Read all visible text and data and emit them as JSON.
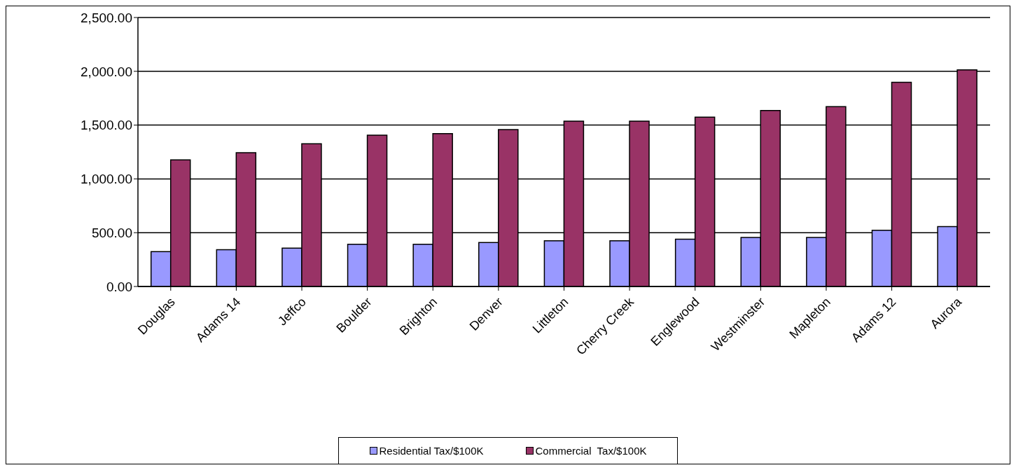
{
  "chart_data": {
    "type": "bar",
    "categories": [
      "Douglas",
      "Adams 14",
      "Jeffco",
      "Boulder",
      "Brighton",
      "Denver",
      "Littleton",
      "Cherry Creek",
      "Englewood",
      "Westminster",
      "Mapleton",
      "Adams 12",
      "Aurora"
    ],
    "series": [
      {
        "name": "Residential Tax/$100K",
        "color": "#9999ff",
        "values": [
          324,
          341,
          357,
          393,
          393,
          408,
          424,
          424,
          439,
          456,
          456,
          523,
          556
        ]
      },
      {
        "name": "Commercial  Tax/$100K",
        "color": "#993366",
        "values": [
          1177,
          1244,
          1327,
          1407,
          1421,
          1459,
          1536,
          1536,
          1574,
          1636,
          1672,
          1898,
          2013
        ]
      }
    ],
    "ylim": [
      0,
      2500
    ],
    "yticks": [
      {
        "value": 0,
        "label": "0.00"
      },
      {
        "value": 500,
        "label": "500.00"
      },
      {
        "value": 1000,
        "label": "1,000.00"
      },
      {
        "value": 1500,
        "label": "1,500.00"
      },
      {
        "value": 2000,
        "label": "2,000.00"
      },
      {
        "value": 2500,
        "label": "2,500.00"
      }
    ],
    "grid": "y",
    "legend": "bottom"
  }
}
